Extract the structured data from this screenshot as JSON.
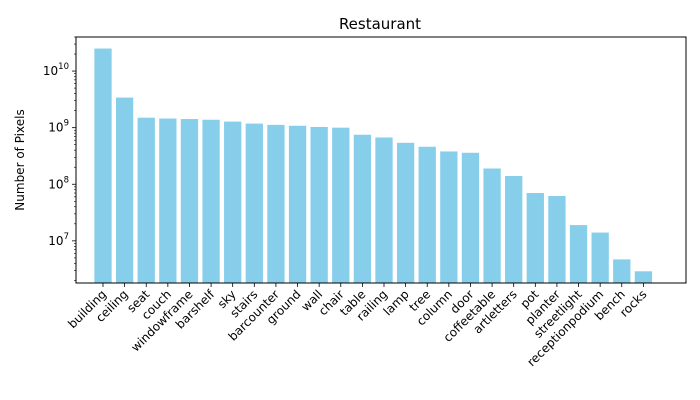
{
  "chart_data": {
    "type": "bar",
    "title": "Restaurant",
    "xlabel": "",
    "ylabel": "Number of Pixels",
    "yscale": "log",
    "ylim": [
      1800000.0,
      40000000000.0
    ],
    "grid": false,
    "color": "#87ceeb",
    "categories": [
      "building",
      "ceiling",
      "seat",
      "couch",
      "windowframe",
      "barshelf",
      "sky",
      "stairs",
      "barcounter",
      "ground",
      "wall",
      "chair",
      "table",
      "railing",
      "lamp",
      "tree",
      "column",
      "door",
      "coffeetable",
      "artletters",
      "pot",
      "planter",
      "streetlight",
      "receptionpodium",
      "bench",
      "rocks"
    ],
    "values": [
      25000000000.0,
      3400000000.0,
      1500000000.0,
      1450000000.0,
      1420000000.0,
      1380000000.0,
      1280000000.0,
      1180000000.0,
      1120000000.0,
      1080000000.0,
      1030000000.0,
      1000000000.0,
      750000000.0,
      670000000.0,
      540000000.0,
      460000000.0,
      380000000.0,
      360000000.0,
      190000000.0,
      140000000.0,
      70000000.0,
      62000000.0,
      19000000.0,
      14000000.0,
      4700000.0,
      2900000.0
    ],
    "yticks": [
      {
        "value": 10000000.0,
        "base": "10",
        "exp": "7"
      },
      {
        "value": 100000000.0,
        "base": "10",
        "exp": "8"
      },
      {
        "value": 1000000000.0,
        "base": "10",
        "exp": "9"
      },
      {
        "value": 10000000000.0,
        "base": "10",
        "exp": "10"
      }
    ]
  }
}
